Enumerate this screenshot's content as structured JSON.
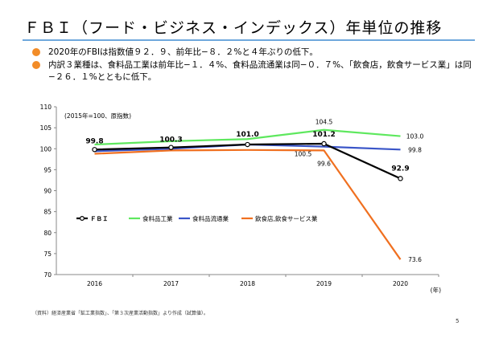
{
  "title": "ＦＢＩ（フード・ビジネス・インデックス）年単位の推移",
  "bullets": [
    "2020年のFBIは指数値９２．９、前年比−８．２%と４年ぶりの低下。",
    "内訳３業種は、食料品工業は前年比−１．４%、食料品流通業は同−０．７%、「飲食店，飲食サービス業」は同−２６．１%とともに低下。"
  ],
  "accent_colors": {
    "bullet": "#f28c28",
    "rule": "#6fa8dc"
  },
  "chart_data": {
    "type": "line",
    "categories": [
      "2016",
      "2017",
      "2018",
      "2019",
      "2020"
    ],
    "xlabel": "(年)",
    "ylabel": "",
    "ylim": [
      70,
      110
    ],
    "yticks": [
      70,
      75,
      80,
      85,
      90,
      95,
      100,
      105,
      110
    ],
    "note": "(2015年=100、原指数)",
    "grid": false,
    "legend_position": "left-middle",
    "series": [
      {
        "name": "ＦＢＩ",
        "color": "#000000",
        "marker": "circle",
        "values": [
          99.8,
          100.3,
          101.0,
          101.2,
          92.9
        ]
      },
      {
        "name": "食料品工業",
        "color": "#5ee85e",
        "values": [
          101.0,
          101.8,
          102.3,
          104.5,
          103.0
        ]
      },
      {
        "name": "食料品流通業",
        "color": "#3a55c8",
        "values": [
          99.4,
          100.0,
          101.0,
          100.5,
          99.8
        ]
      },
      {
        "name": "飲食店,飲食サービス業",
        "color": "#f07020",
        "values": [
          98.8,
          99.6,
          99.7,
          99.6,
          73.6
        ]
      }
    ],
    "data_labels": [
      {
        "text": "99.8",
        "series": 0,
        "point": 0,
        "bold": true
      },
      {
        "text": "100.3",
        "series": 0,
        "point": 1,
        "bold": true
      },
      {
        "text": "101.0",
        "series": 0,
        "point": 2,
        "bold": true
      },
      {
        "text": "101.2",
        "series": 0,
        "point": 3,
        "bold": true
      },
      {
        "text": "92.9",
        "series": 0,
        "point": 4,
        "bold": true
      },
      {
        "text": "104.5",
        "series": 1,
        "point": 3,
        "bold": false
      },
      {
        "text": "103.0",
        "series": 1,
        "point": 4,
        "bold": false
      },
      {
        "text": "100.5",
        "series": 2,
        "point": 3,
        "bold": false
      },
      {
        "text": "99.8",
        "series": 2,
        "point": 4,
        "bold": false
      },
      {
        "text": "99.6",
        "series": 3,
        "point": 3,
        "bold": false
      },
      {
        "text": "73.6",
        "series": 3,
        "point": 4,
        "bold": false
      }
    ]
  },
  "footnote": "（資料）経済産業省「鉱工業指数」、「第３次産業活動指数」より作成（試算値）。",
  "page_number": "5"
}
